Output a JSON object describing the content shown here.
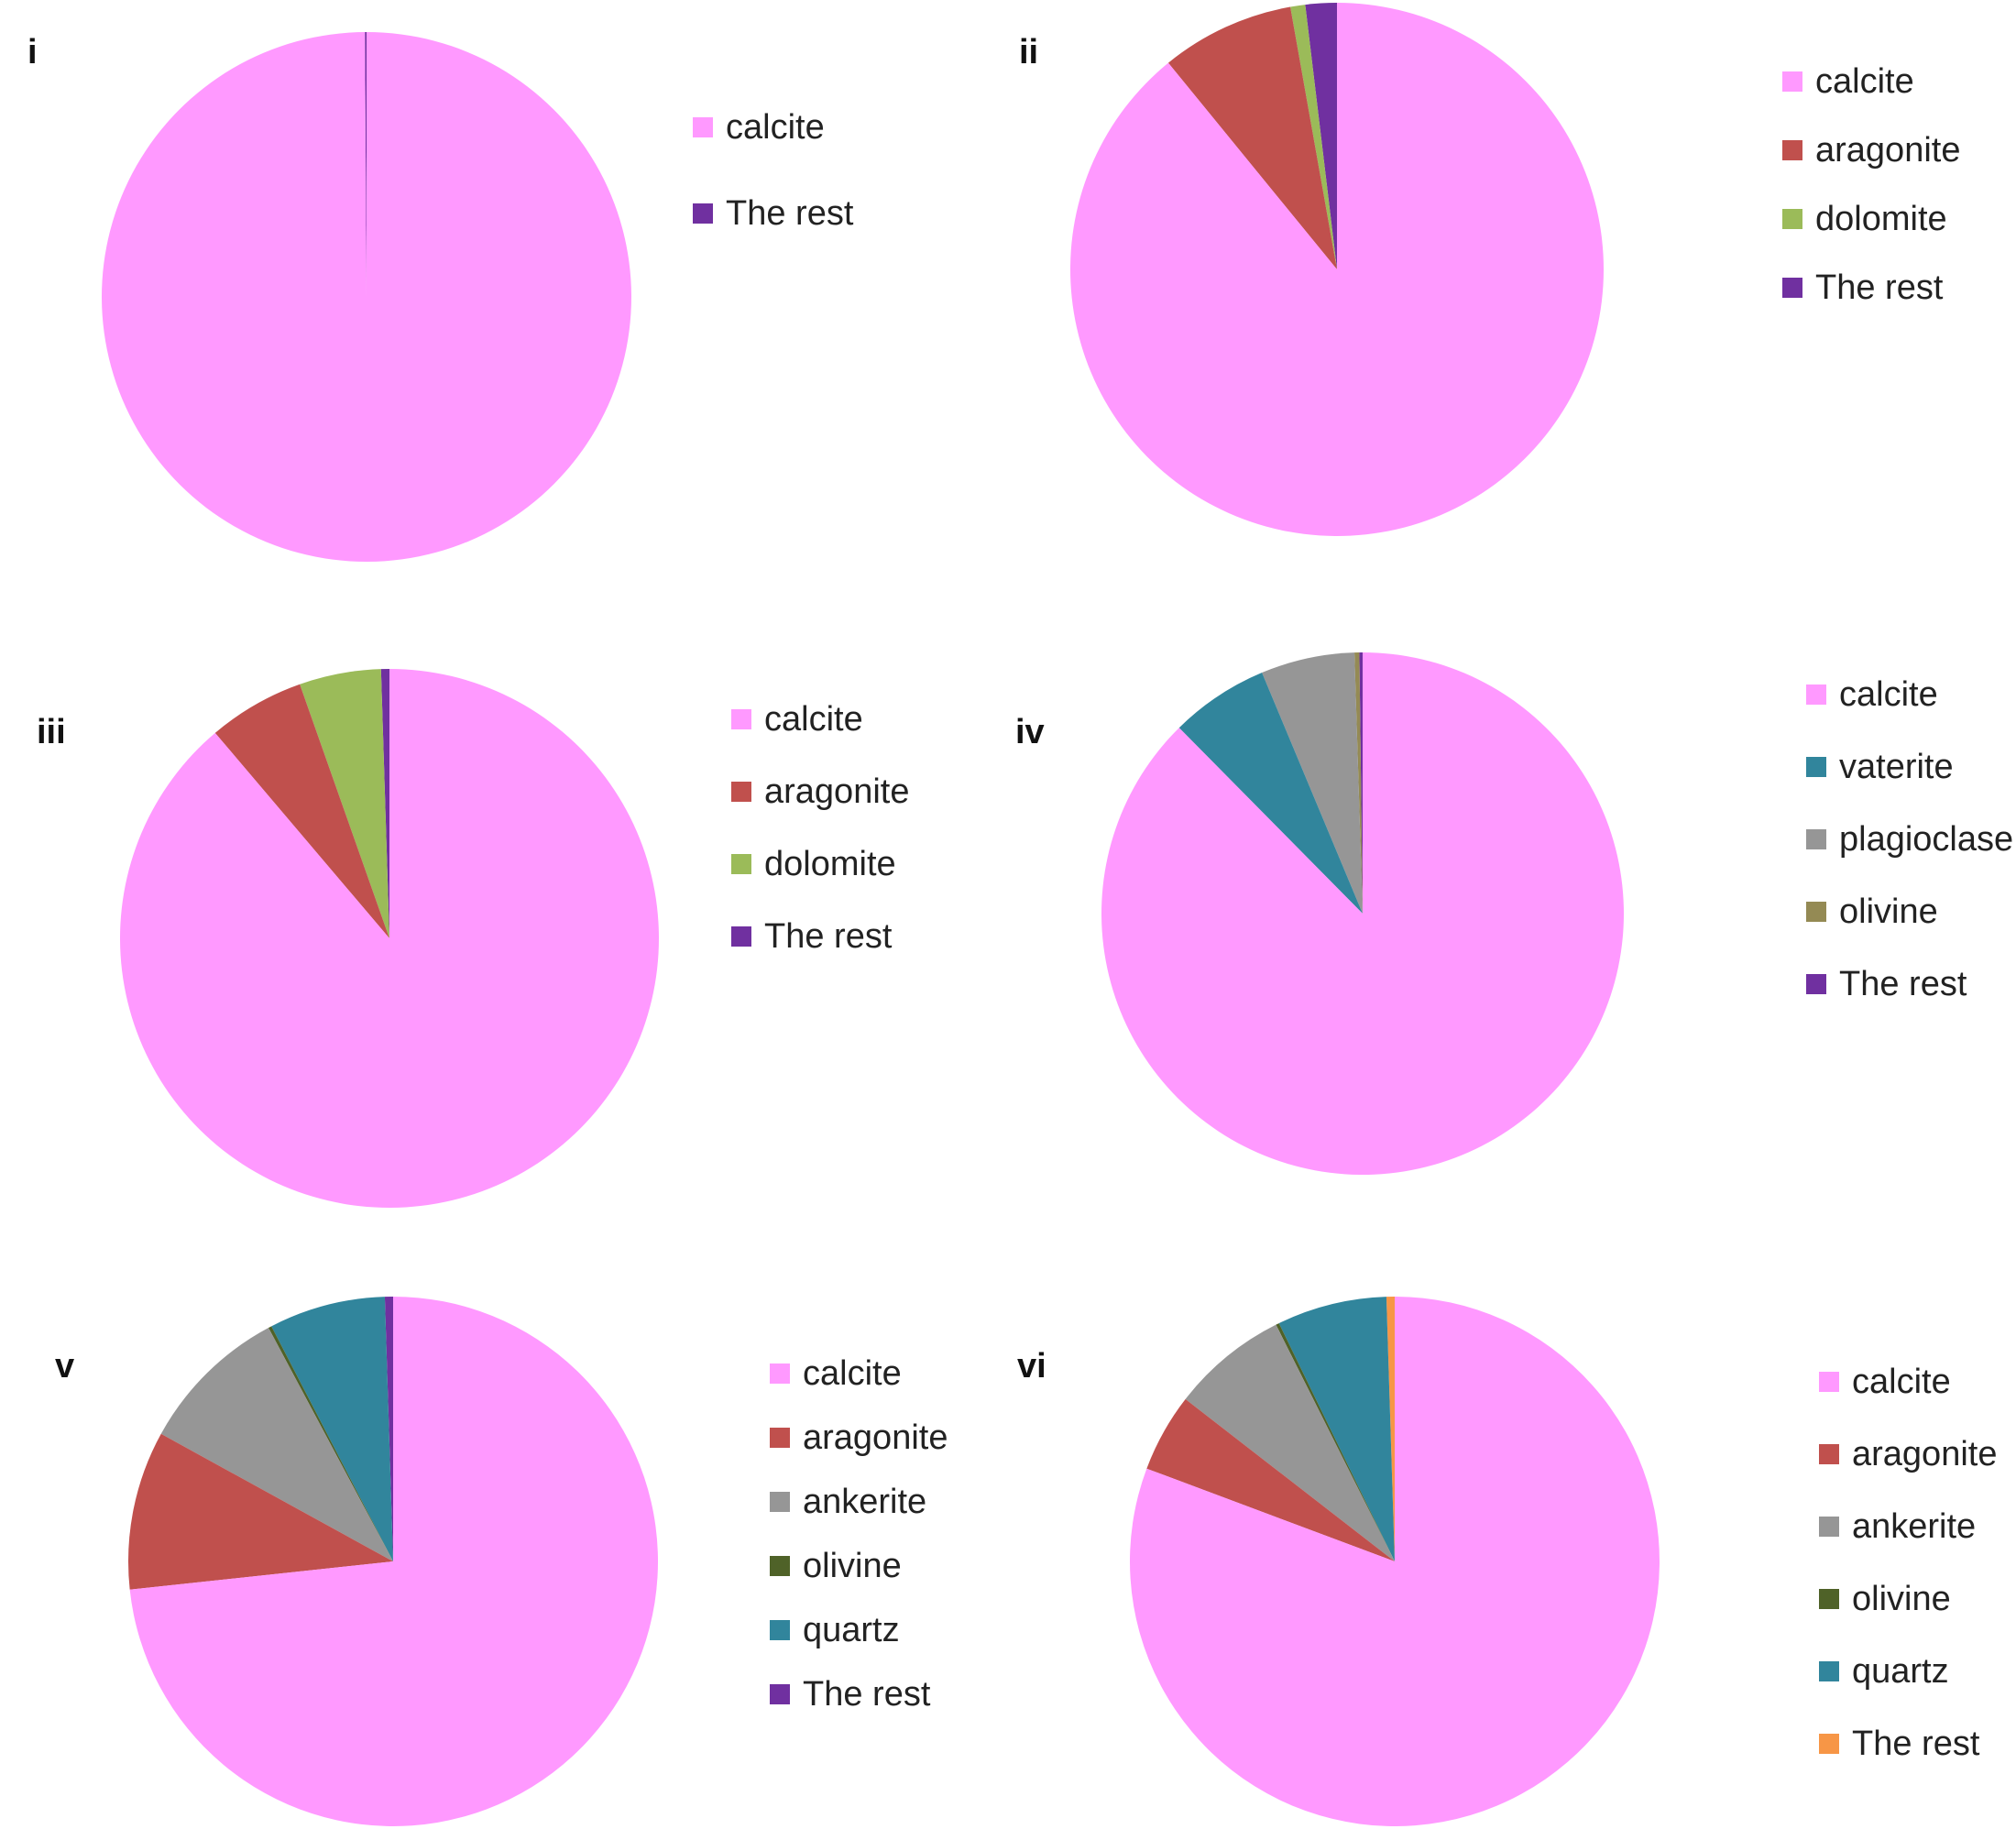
{
  "colors": {
    "calcite": "#ff99ff",
    "aragonite": "#c0504d",
    "dolomite": "#9bbb59",
    "the_rest_purple": "#7030a0",
    "vaterite": "#31859c",
    "plagioclase": "#969696",
    "olivine_iv": "#948a54",
    "ankerite": "#969696",
    "olivine": "#4f6228",
    "quartz": "#31859c",
    "the_rest_orange": "#f79646"
  },
  "chart_data": [
    {
      "type": "pie",
      "panel_label": "i",
      "labels": [
        "calcite",
        "The rest"
      ],
      "values": [
        99.9,
        0.1
      ],
      "colors": [
        "#ff99ff",
        "#7030a0"
      ],
      "legend_position": "right"
    },
    {
      "type": "pie",
      "panel_label": "ii",
      "labels": [
        "calcite",
        "aragonite",
        "dolomite",
        "The rest"
      ],
      "values": [
        89.1,
        8.1,
        0.9,
        1.9
      ],
      "colors": [
        "#ff99ff",
        "#c0504d",
        "#9bbb59",
        "#7030a0"
      ],
      "legend_position": "right"
    },
    {
      "type": "pie",
      "panel_label": "iii",
      "labels": [
        "calcite",
        "aragonite",
        "dolomite",
        "The rest"
      ],
      "values": [
        88.8,
        5.8,
        4.9,
        0.5
      ],
      "colors": [
        "#ff99ff",
        "#c0504d",
        "#9bbb59",
        "#7030a0"
      ],
      "legend_position": "right"
    },
    {
      "type": "pie",
      "panel_label": "iv",
      "labels": [
        "calcite",
        "vaterite",
        "plagioclase",
        "olivine",
        "The rest"
      ],
      "values": [
        87.6,
        6.1,
        5.8,
        0.3,
        0.2
      ],
      "colors": [
        "#ff99ff",
        "#31859c",
        "#969696",
        "#948a54",
        "#7030a0"
      ],
      "legend_position": "right"
    },
    {
      "type": "pie",
      "panel_label": "v",
      "labels": [
        "calcite",
        "aragonite",
        "ankerite",
        "olivine",
        "quartz",
        "The rest"
      ],
      "values": [
        73.3,
        9.7,
        9.2,
        0.2,
        7.1,
        0.5
      ],
      "colors": [
        "#ff99ff",
        "#c0504d",
        "#969696",
        "#4f6228",
        "#31859c",
        "#7030a0"
      ],
      "legend_position": "right"
    },
    {
      "type": "pie",
      "panel_label": "vi",
      "labels": [
        "calcite",
        "aragonite",
        "ankerite",
        "olivine",
        "quartz",
        "The rest"
      ],
      "values": [
        80.7,
        4.8,
        7.1,
        0.2,
        6.7,
        0.5
      ],
      "colors": [
        "#ff99ff",
        "#c0504d",
        "#969696",
        "#4f6228",
        "#31859c",
        "#f79646"
      ],
      "legend_position": "right"
    }
  ]
}
